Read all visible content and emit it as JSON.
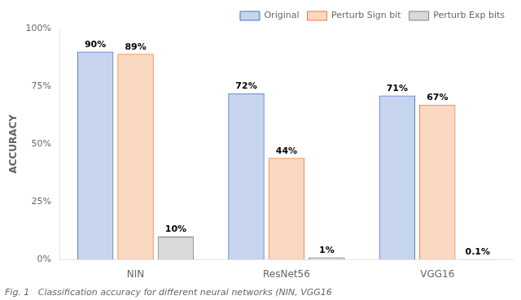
{
  "chart_data": {
    "type": "bar",
    "categories": [
      "NIN",
      "ResNet56",
      "VGG16"
    ],
    "series": [
      {
        "name": "Original",
        "color": "#4472C4",
        "values": [
          90,
          72,
          71
        ],
        "value_labels": [
          "90%",
          "72%",
          "71%"
        ]
      },
      {
        "name": "Perturb Sign bit",
        "color": "#ED7D31",
        "values": [
          89,
          44,
          67
        ],
        "value_labels": [
          "89%",
          "44%",
          "67%"
        ]
      },
      {
        "name": "Perturb Exp bits",
        "color": "#808080",
        "values": [
          10,
          1,
          0.1
        ],
        "value_labels": [
          "10%",
          "1%",
          "0.1%"
        ]
      }
    ],
    "ylabel": "ACCURACY",
    "ylim": [
      0,
      100
    ],
    "yticks": [
      {
        "value": 0,
        "label": "0%"
      },
      {
        "value": 25,
        "label": "25%"
      },
      {
        "value": 50,
        "label": "50%"
      },
      {
        "value": 75,
        "label": "75%"
      },
      {
        "value": 100,
        "label": "100%"
      }
    ],
    "grid": false,
    "legend": "upper right",
    "data_labels": true,
    "annotations": [
      "Fig. 1   Classification accuracy for different neural networks (NIN, VGG16"
    ]
  }
}
